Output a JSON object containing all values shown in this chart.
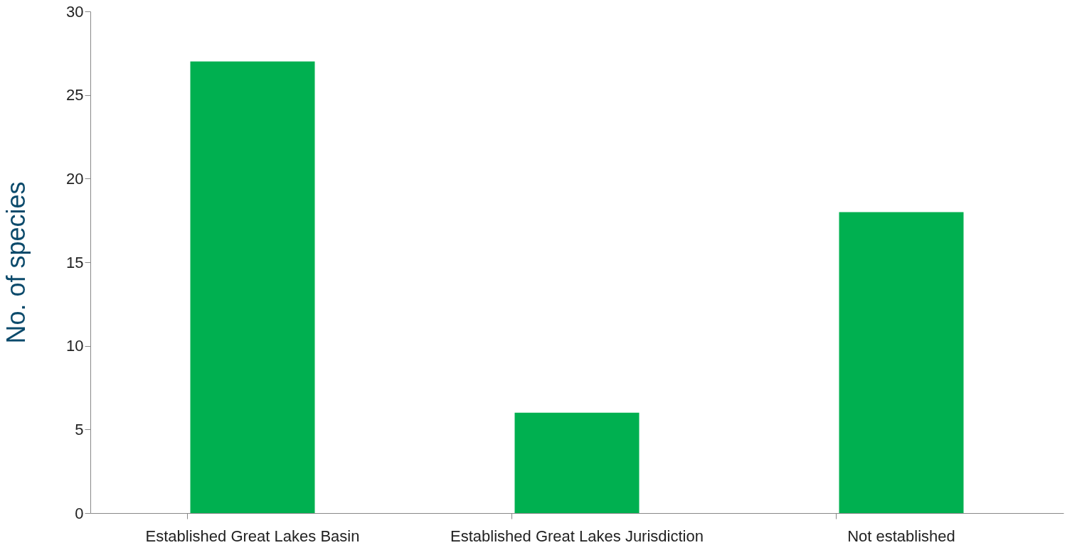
{
  "chart_data": {
    "type": "bar",
    "ylabel": "No. of species",
    "categories": [
      "Established Great Lakes Basin",
      "Established Great Lakes Jurisdiction",
      "Not established"
    ],
    "values": [
      27,
      6,
      18
    ],
    "color": "#00b050",
    "ylim": [
      0,
      30
    ],
    "yticks": [
      0,
      5,
      10,
      15,
      20,
      25,
      30
    ],
    "grid": false
  }
}
